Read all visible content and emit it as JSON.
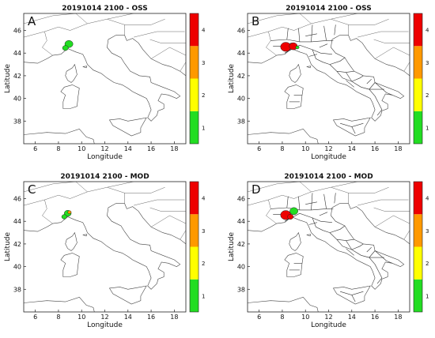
{
  "panels": [
    {
      "letter": "A",
      "title": "20191014 2100 - OSS",
      "detail": "low",
      "warning_areas": [
        {
          "level": 1,
          "lon": 8.9,
          "lat": 44.8,
          "r": 0.35
        },
        {
          "level": 1,
          "lon": 8.6,
          "lat": 44.45,
          "r": 0.25
        }
      ]
    },
    {
      "letter": "B",
      "title": "20191014 2100 - OSS",
      "detail": "high",
      "warning_areas": [
        {
          "level": 4,
          "lon": 8.3,
          "lat": 44.55,
          "r": 0.45
        },
        {
          "level": 4,
          "lon": 8.95,
          "lat": 44.6,
          "r": 0.35
        },
        {
          "level": 1,
          "lon": 9.3,
          "lat": 44.5,
          "r": 0.15
        }
      ]
    },
    {
      "letter": "C",
      "title": "20191014 2100 - MOD",
      "detail": "low",
      "warning_areas": [
        {
          "level": 1,
          "lon": 8.8,
          "lat": 44.7,
          "r": 0.3
        },
        {
          "level": 3,
          "lon": 8.95,
          "lat": 44.8,
          "r": 0.15
        },
        {
          "level": 1,
          "lon": 8.5,
          "lat": 44.4,
          "r": 0.22
        }
      ]
    },
    {
      "letter": "D",
      "title": "20191014 2100 - MOD",
      "detail": "high",
      "warning_areas": [
        {
          "level": 4,
          "lon": 8.3,
          "lat": 44.55,
          "r": 0.45
        },
        {
          "level": 1,
          "lon": 9.0,
          "lat": 44.9,
          "r": 0.35
        },
        {
          "level": 4,
          "lon": 8.7,
          "lat": 44.4,
          "r": 0.25
        }
      ]
    }
  ],
  "axes": {
    "xlabel": "Longitude",
    "ylabel": "Latitude",
    "xlim": [
      5,
      19
    ],
    "ylim": [
      36,
      47.5
    ],
    "xticks": [
      6,
      8,
      10,
      12,
      14,
      16,
      18
    ],
    "yticks": [
      38,
      40,
      42,
      44,
      46
    ]
  },
  "colorbar": {
    "levels": [
      {
        "value": 1,
        "label": "1",
        "color": "#22dd22"
      },
      {
        "value": 2,
        "label": "2",
        "color": "#ffff00"
      },
      {
        "value": 3,
        "label": "3",
        "color": "#ff9900"
      },
      {
        "value": 4,
        "label": "4",
        "color": "#ee0000"
      }
    ]
  },
  "colors": {
    "coastline": "#444444",
    "borders": "#666666",
    "regions": "#333333"
  }
}
